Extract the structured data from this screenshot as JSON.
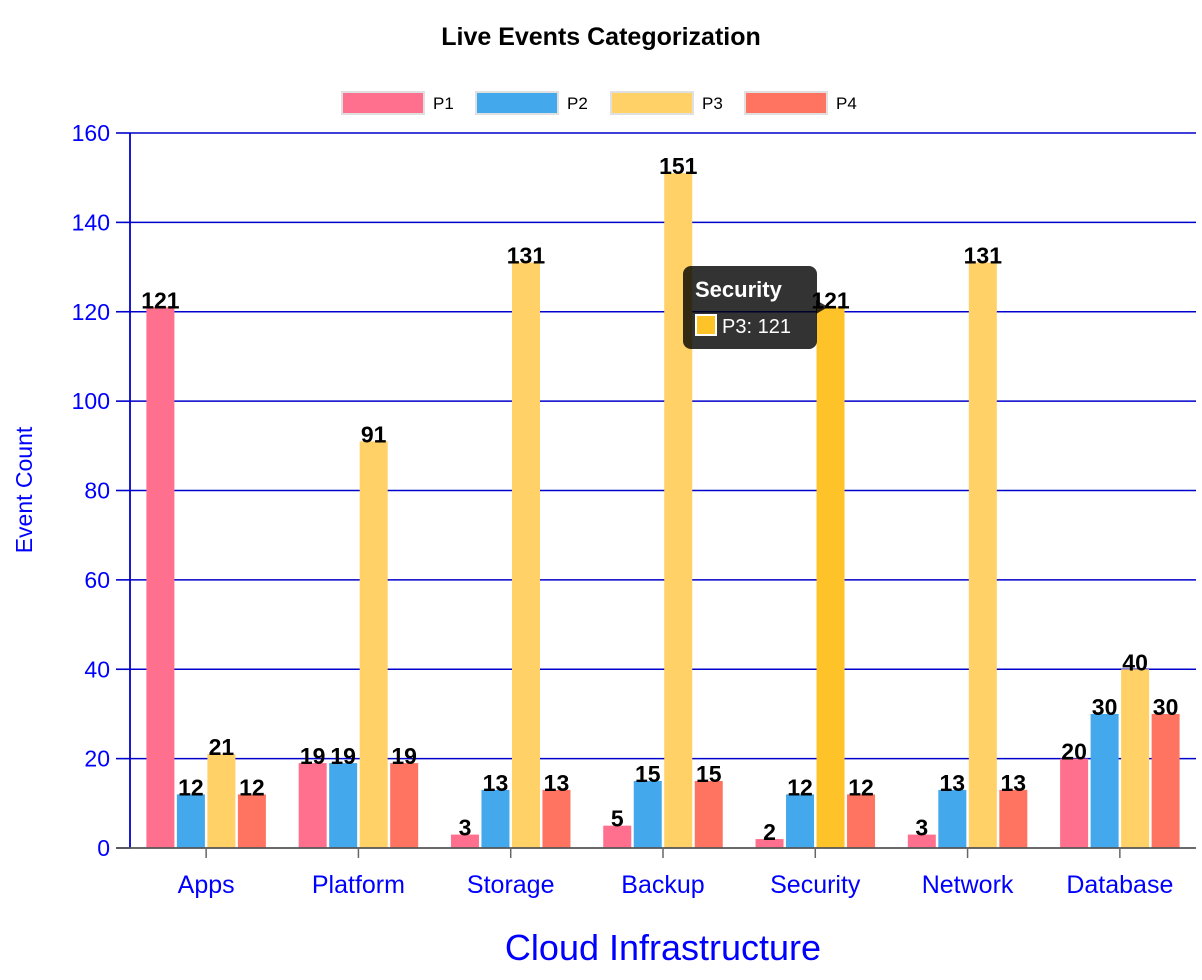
{
  "chart_data": {
    "type": "bar",
    "title": "Live Events Categorization",
    "xlabel": "Cloud Infrastructure",
    "ylabel": "Event Count",
    "categories": [
      "Apps",
      "Platform",
      "Storage",
      "Backup",
      "Security",
      "Network",
      "Database"
    ],
    "series": [
      {
        "name": "P1",
        "values": [
          121,
          19,
          3,
          5,
          2,
          3,
          20
        ],
        "color": "#ff6f8e"
      },
      {
        "name": "P2",
        "values": [
          12,
          19,
          13,
          15,
          12,
          13,
          30
        ],
        "color": "#43a8ec"
      },
      {
        "name": "P3",
        "values": [
          21,
          91,
          131,
          151,
          121,
          131,
          40
        ],
        "color": "#ffd166"
      },
      {
        "name": "P4",
        "values": [
          12,
          19,
          13,
          15,
          12,
          13,
          30
        ],
        "color": "#ff7361"
      }
    ],
    "ylim": [
      0,
      160
    ],
    "yticks": [
      0,
      20,
      40,
      60,
      80,
      100,
      120,
      140,
      160
    ],
    "grid": true,
    "grid_color": "#0000cc",
    "axis_text_color": "#0000ff",
    "legend_position": "top-center",
    "tooltip": {
      "title": "Security",
      "text": "P3: 121",
      "series": "P3",
      "category": "Security"
    },
    "highlighted": {
      "series": "P3",
      "category": "Security",
      "color": "#ffc32a"
    }
  }
}
